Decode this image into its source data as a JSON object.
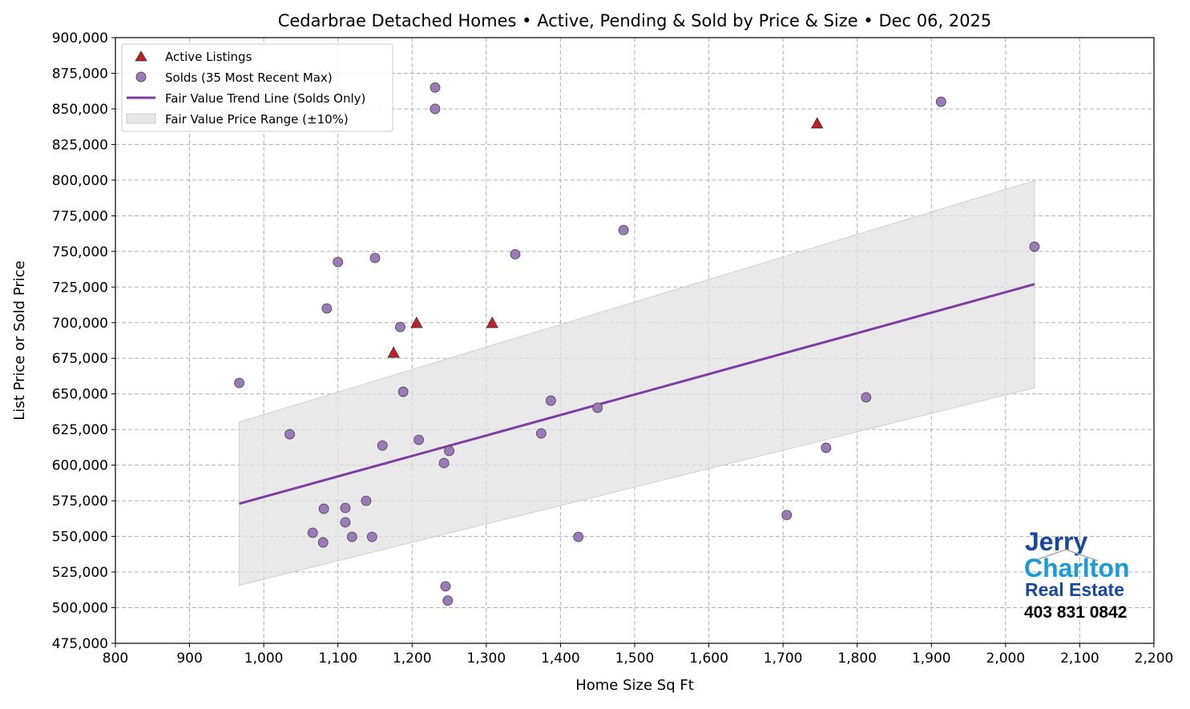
{
  "chart_data": {
    "type": "scatter",
    "title": "Cedarbrae Detached Homes • Active, Pending & Sold by Price & Size • Dec 06, 2025",
    "xlabel": "Home Size Sq Ft",
    "ylabel": "List Price or Sold Price",
    "xlim": [
      800,
      2200
    ],
    "ylim": [
      475000,
      900000
    ],
    "xticks": [
      800,
      900,
      1000,
      1100,
      1200,
      1300,
      1400,
      1500,
      1600,
      1700,
      1800,
      1900,
      2000,
      2100,
      2200
    ],
    "yticks": [
      475000,
      500000,
      525000,
      550000,
      575000,
      600000,
      625000,
      650000,
      675000,
      700000,
      725000,
      750000,
      775000,
      800000,
      825000,
      850000,
      875000,
      900000
    ],
    "grid": true,
    "legend_position": "top-left",
    "legend": [
      "Active Listings",
      "Solds (35 Most Recent Max)",
      "Fair Value Trend Line (Solds Only)",
      "Fair Value Price Range (±10%)"
    ],
    "colors": {
      "active": "#c0202a",
      "sold": "#9b7bb5",
      "trend": "#7a3f9d",
      "range": "#d9d9d9"
    },
    "series": [
      {
        "name": "Active Listings",
        "marker": "triangle",
        "points": [
          [
            1175,
            679000
          ],
          [
            1206,
            699900
          ],
          [
            1308,
            699900
          ],
          [
            1746,
            839900
          ]
        ]
      },
      {
        "name": "Solds (35 Most Recent Max)",
        "marker": "circle",
        "points": [
          [
            967,
            657700
          ],
          [
            1035,
            621700
          ],
          [
            1066,
            552600
          ],
          [
            1081,
            569400
          ],
          [
            1080,
            545800
          ],
          [
            1085,
            710000
          ],
          [
            1100,
            742600
          ],
          [
            1110,
            570000
          ],
          [
            1110,
            559900
          ],
          [
            1119,
            549700
          ],
          [
            1138,
            575000
          ],
          [
            1146,
            549700
          ],
          [
            1150,
            745400
          ],
          [
            1160,
            613800
          ],
          [
            1184,
            697000
          ],
          [
            1188,
            651500
          ],
          [
            1209,
            617800
          ],
          [
            1231,
            865000
          ],
          [
            1231,
            850000
          ],
          [
            1243,
            601500
          ],
          [
            1245,
            515000
          ],
          [
            1248,
            505000
          ],
          [
            1250,
            610000
          ],
          [
            1339,
            748000
          ],
          [
            1374,
            622300
          ],
          [
            1387,
            645300
          ],
          [
            1424,
            549700
          ],
          [
            1450,
            640300
          ],
          [
            1485,
            765000
          ],
          [
            1705,
            565000
          ],
          [
            1758,
            612200
          ],
          [
            1812,
            647600
          ],
          [
            1913,
            855000
          ],
          [
            2039,
            753300
          ]
        ]
      },
      {
        "name": "Fair Value Trend Line (Solds Only)",
        "type": "line",
        "points": [
          [
            967,
            573000
          ],
          [
            2039,
            727000
          ]
        ]
      },
      {
        "name": "Fair Value Price Range (±10%)",
        "type": "band",
        "pct": 10
      }
    ]
  },
  "logo": {
    "line1": "Jerry",
    "line2": "Charlton",
    "line3": "Real Estate",
    "phone": "403 831 0842"
  }
}
